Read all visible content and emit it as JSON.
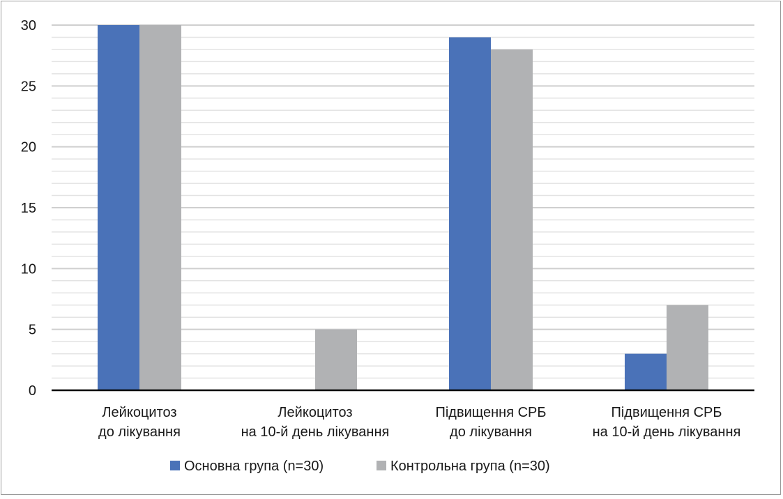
{
  "chart_data": {
    "type": "bar",
    "categories": [
      [
        "Лейкоцитоз",
        "до лікування"
      ],
      [
        "Лейкоцитоз",
        "на 10-й день лікування"
      ],
      [
        "Підвищення СРБ",
        "до лікування"
      ],
      [
        "Підвищення СРБ",
        "на 10-й день лікування"
      ]
    ],
    "series": [
      {
        "name": "Основна група (n=30)",
        "values": [
          30,
          0,
          29,
          3
        ],
        "color": "#4a72b8"
      },
      {
        "name": "Контрольна група (n=30)",
        "values": [
          30,
          5,
          28,
          7
        ],
        "color": "#b1b2b4"
      }
    ],
    "ylim": [
      0,
      30
    ],
    "yticks": [
      0,
      5,
      10,
      15,
      20,
      25,
      30
    ],
    "minor_grid_step": 1,
    "grid": true,
    "legend_position": "bottom-center",
    "title": "",
    "xlabel": "",
    "ylabel": ""
  }
}
